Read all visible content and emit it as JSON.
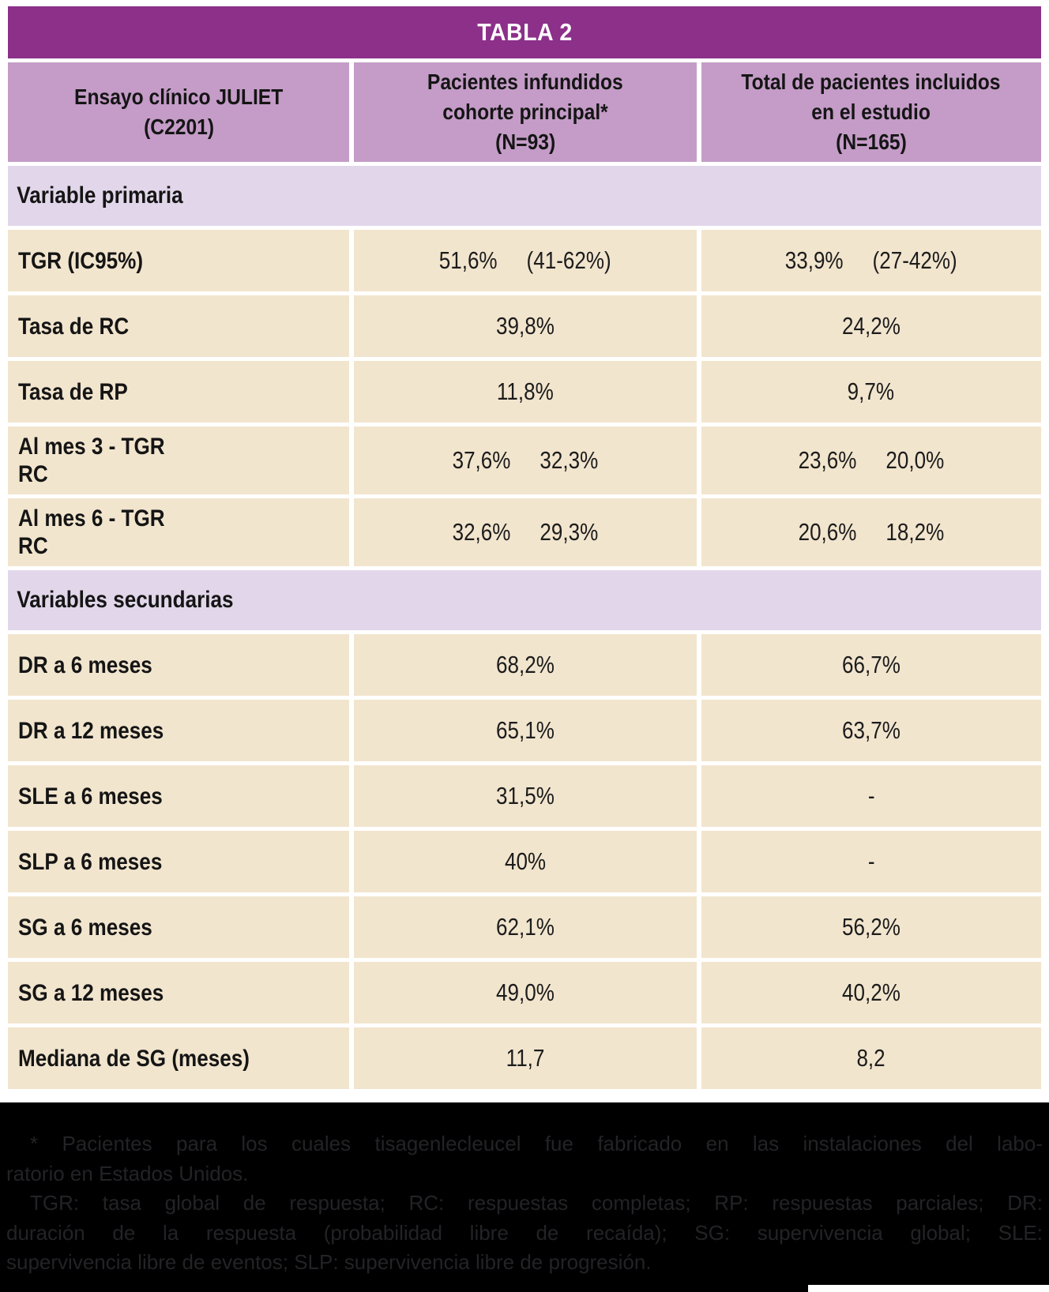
{
  "colors": {
    "title_bg": "#8c3089",
    "header_bg": "#c49cc7",
    "section_bg": "#e2d7ea",
    "row_bg": "#f2e5ce",
    "footnote_bg": "#000000",
    "footnote_text": "#232327"
  },
  "table": {
    "title": "TABLA 2",
    "columns": [
      {
        "lines": [
          "Ensayo clínico JULIET",
          "(C2201)"
        ]
      },
      {
        "lines": [
          "Pacientes infundidos",
          "cohorte principal*",
          "(N=93)"
        ]
      },
      {
        "lines": [
          "Total de pacientes incluidos",
          "en el estudio",
          "(N=165)"
        ]
      }
    ],
    "rows": [
      {
        "type": "section",
        "label": "Variable primaria"
      },
      {
        "type": "data",
        "label_lines": [
          "TGR (IC95%)"
        ],
        "cohort_values": [
          "51,6%",
          "(41-62%)"
        ],
        "total_values": [
          "33,9%",
          "(27-42%)"
        ]
      },
      {
        "type": "data",
        "label_lines": [
          "Tasa de RC"
        ],
        "cohort_values": [
          "39,8%"
        ],
        "total_values": [
          "24,2%"
        ]
      },
      {
        "type": "data",
        "label_lines": [
          "Tasa de RP"
        ],
        "cohort_values": [
          "11,8%"
        ],
        "total_values": [
          "9,7%"
        ]
      },
      {
        "type": "data",
        "label_lines": [
          "Al mes 3 - TGR",
          "RC"
        ],
        "cohort_values": [
          "37,6%",
          "32,3%"
        ],
        "total_values": [
          "23,6%",
          "20,0%"
        ]
      },
      {
        "type": "data",
        "label_lines": [
          "Al mes 6 - TGR",
          "RC"
        ],
        "cohort_values": [
          "32,6%",
          "29,3%"
        ],
        "total_values": [
          "20,6%",
          "18,2%"
        ]
      },
      {
        "type": "section",
        "label": "Variables secundarias"
      },
      {
        "type": "data",
        "label_lines": [
          "DR a 6 meses"
        ],
        "cohort_values": [
          "68,2%"
        ],
        "total_values": [
          "66,7%"
        ]
      },
      {
        "type": "data",
        "label_lines": [
          "DR a 12 meses"
        ],
        "cohort_values": [
          "65,1%"
        ],
        "total_values": [
          "63,7%"
        ]
      },
      {
        "type": "data",
        "label_lines": [
          "SLE a 6 meses"
        ],
        "cohort_values": [
          "31,5%"
        ],
        "total_values": [
          "-"
        ]
      },
      {
        "type": "data",
        "label_lines": [
          "SLP a 6 meses"
        ],
        "cohort_values": [
          "40%"
        ],
        "total_values": [
          "-"
        ]
      },
      {
        "type": "data",
        "label_lines": [
          "SG a 6 meses"
        ],
        "cohort_values": [
          "62,1%"
        ],
        "total_values": [
          "56,2%"
        ]
      },
      {
        "type": "data",
        "label_lines": [
          "SG a 12 meses"
        ],
        "cohort_values": [
          "49,0%"
        ],
        "total_values": [
          "40,2%"
        ]
      },
      {
        "type": "data",
        "label_lines": [
          "Mediana de SG (meses)"
        ],
        "cohort_values": [
          "11,7"
        ],
        "total_values": [
          "8,2"
        ]
      }
    ]
  },
  "footnote": {
    "lines": [
      {
        "text": "* Pacientes para los cuales tisagenlecleucel fue fabricado en las instalaciones del labo-",
        "indent": true,
        "justify": true
      },
      {
        "text": "ratorio en Estados Unidos.",
        "indent": false,
        "justify": false
      },
      {
        "text": "TGR: tasa global de respuesta; RC: respuestas completas; RP: respuestas parciales; DR:",
        "indent": true,
        "justify": true
      },
      {
        "text": "duración de la respuesta (probabilidad libre de recaída); SG: supervivencia global; SLE:",
        "indent": false,
        "justify": true
      },
      {
        "text": "supervivencia libre de eventos; SLP: supervivencia libre de progresión.",
        "indent": false,
        "justify": false
      }
    ]
  }
}
